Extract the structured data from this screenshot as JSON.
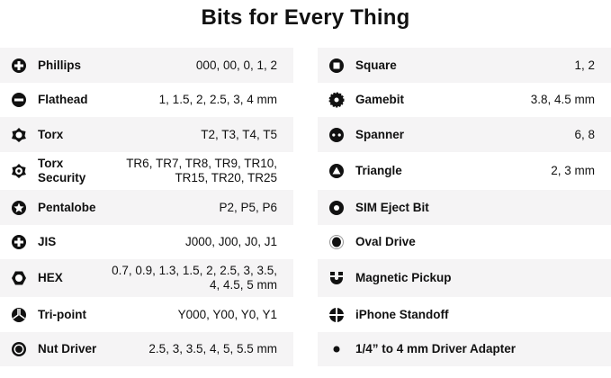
{
  "title": "Bits for Every Thing",
  "left": [
    {
      "name": "Phillips",
      "value": "000, 00, 0, 1, 2",
      "icon": "phillips-icon"
    },
    {
      "name": "Flathead",
      "value": "1, 1.5, 2, 2.5, 3, 4 mm",
      "icon": "flathead-icon"
    },
    {
      "name": "Torx",
      "value": "T2, T3, T4, T5",
      "icon": "torx-icon"
    },
    {
      "name": "Torx Security",
      "value": "TR6, TR7, TR8, TR9, TR10, TR15, TR20, TR25",
      "icon": "torx-security-icon"
    },
    {
      "name": "Pentalobe",
      "value": "P2, P5, P6",
      "icon": "pentalobe-icon"
    },
    {
      "name": "JIS",
      "value": "J000, J00, J0, J1",
      "icon": "jis-icon"
    },
    {
      "name": "HEX",
      "value": "0.7, 0.9, 1.3, 1.5, 2, 2.5, 3, 3.5, 4, 4.5, 5 mm",
      "icon": "hex-icon"
    },
    {
      "name": "Tri-point",
      "value": "Y000, Y00, Y0, Y1",
      "icon": "tri-point-icon"
    },
    {
      "name": "Nut Driver",
      "value": "2.5, 3, 3.5, 4, 5, 5.5 mm",
      "icon": "nut-driver-icon"
    }
  ],
  "right": [
    {
      "name": "Square",
      "value": "1, 2",
      "icon": "square-icon"
    },
    {
      "name": "Gamebit",
      "value": "3.8, 4.5 mm",
      "icon": "gamebit-icon"
    },
    {
      "name": "Spanner",
      "value": "6, 8",
      "icon": "spanner-icon"
    },
    {
      "name": "Triangle",
      "value": "2, 3 mm",
      "icon": "triangle-icon"
    },
    {
      "name": "SIM Eject Bit",
      "value": "",
      "icon": "sim-eject-icon"
    },
    {
      "name": "Oval Drive",
      "value": "",
      "icon": "oval-drive-icon"
    },
    {
      "name": "Magnetic Pickup",
      "value": "",
      "icon": "magnet-icon"
    },
    {
      "name": "iPhone Standoff",
      "value": "",
      "icon": "standoff-icon"
    },
    {
      "name": "1/4” to 4 mm Driver Adapter",
      "value": "",
      "icon": "dot-icon"
    }
  ]
}
